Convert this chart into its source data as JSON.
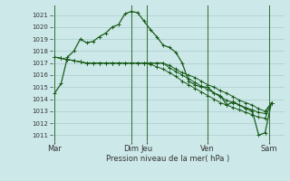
{
  "bg_color": "#cce8e8",
  "grid_color": "#aacccc",
  "line_color": "#1a5c1a",
  "ylim": [
    1010.5,
    1021.8
  ],
  "yticks": [
    1011,
    1012,
    1013,
    1014,
    1015,
    1016,
    1017,
    1018,
    1019,
    1020,
    1021
  ],
  "xlabel": "Pression niveau de la mer( hPa )",
  "xtick_labels": [
    "Mar",
    "Dim",
    "Jeu",
    "Ven",
    "Sam"
  ],
  "xtick_positions": [
    0,
    30,
    36,
    60,
    84
  ],
  "vlines": [
    0,
    30,
    36,
    60,
    84
  ],
  "xlim": [
    -1,
    90
  ],
  "series0": [
    1014.5,
    1015.3,
    1017.5,
    1018.0,
    1019.0,
    1018.7,
    1018.8,
    1019.2,
    1019.5,
    1020.0,
    1020.2,
    1021.1,
    1021.3,
    1021.2,
    1020.5,
    1019.8,
    1019.2,
    1018.5,
    1018.3,
    1017.9,
    1017.0,
    1015.5,
    1015.2,
    1015.0,
    1015.0,
    1014.5,
    1014.3,
    1013.5,
    1013.8,
    1013.5,
    1013.2,
    1013.0,
    1011.0,
    1011.2,
    1013.7
  ],
  "series1": [
    1017.5,
    1017.4,
    1017.3,
    1017.2,
    1017.1,
    1017.0,
    1017.0,
    1017.0,
    1017.0,
    1017.0,
    1017.0,
    1017.0,
    1017.0,
    1017.0,
    1017.0,
    1017.0,
    1017.0,
    1017.0,
    1016.8,
    1016.5,
    1016.2,
    1016.0,
    1015.8,
    1015.5,
    1015.2,
    1015.0,
    1014.7,
    1014.5,
    1014.2,
    1013.9,
    1013.7,
    1013.5,
    1013.2,
    1013.0,
    1013.7
  ],
  "series2": [
    1017.5,
    1017.4,
    1017.3,
    1017.2,
    1017.1,
    1017.0,
    1017.0,
    1017.0,
    1017.0,
    1017.0,
    1017.0,
    1017.0,
    1017.0,
    1017.0,
    1017.0,
    1017.0,
    1017.0,
    1017.0,
    1016.6,
    1016.3,
    1016.0,
    1015.7,
    1015.4,
    1015.1,
    1014.8,
    1014.5,
    1014.2,
    1013.9,
    1013.7,
    1013.5,
    1013.3,
    1013.1,
    1012.9,
    1012.8,
    1013.7
  ],
  "series3": [
    1017.5,
    1017.4,
    1017.3,
    1017.2,
    1017.1,
    1017.0,
    1017.0,
    1017.0,
    1017.0,
    1017.0,
    1017.0,
    1017.0,
    1017.0,
    1017.0,
    1017.0,
    1016.9,
    1016.7,
    1016.5,
    1016.2,
    1015.9,
    1015.5,
    1015.2,
    1014.9,
    1014.6,
    1014.3,
    1014.0,
    1013.7,
    1013.5,
    1013.3,
    1013.1,
    1012.9,
    1012.7,
    1012.5,
    1012.4,
    1013.7
  ],
  "x_positions": [
    0,
    2.5,
    5,
    7.5,
    10,
    12.5,
    15,
    17.5,
    20,
    22.5,
    25,
    27.5,
    30,
    32.5,
    35,
    37.5,
    40,
    42.5,
    45,
    47.5,
    50,
    52.5,
    55,
    57.5,
    60,
    62.5,
    65,
    67.5,
    70,
    72.5,
    75,
    77.5,
    80,
    82.5,
    85
  ]
}
